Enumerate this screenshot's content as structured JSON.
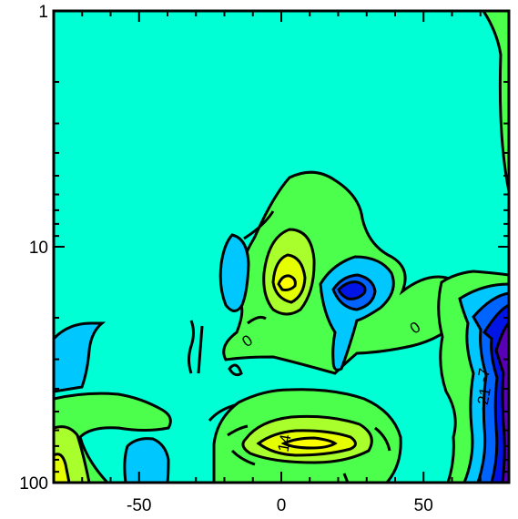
{
  "chart_data": {
    "type": "heatmap",
    "title": "",
    "xlabel": "",
    "ylabel": "",
    "xlim": [
      -80,
      80
    ],
    "ylim": [
      100,
      1
    ],
    "yscale": "log",
    "x_ticks": [
      {
        "value": -50,
        "label": "-50"
      },
      {
        "value": 0,
        "label": "0"
      },
      {
        "value": 50,
        "label": "50"
      }
    ],
    "y_ticks": [
      {
        "value": 1,
        "label": "1"
      },
      {
        "value": 10,
        "label": "10"
      },
      {
        "value": 100,
        "label": "100"
      }
    ],
    "grid": false,
    "contour_labels": [
      {
        "x": -12,
        "y": 25,
        "text": "0"
      },
      {
        "x": 47,
        "y": 22,
        "text": "0"
      },
      {
        "x": 1,
        "y": 68,
        "text": "14"
      },
      {
        "x": 71,
        "y": 35,
        "text": "-7"
      },
      {
        "x": 71,
        "y": 44,
        "text": "-21"
      }
    ],
    "colors": {
      "background": "#00ffd4",
      "green": "#4cff4c",
      "yellow_green": "#a9ff2c",
      "yellow": "#e6ff00",
      "light_blue": "#00c8ff",
      "blue": "#0064ff",
      "dark_blue": "#0014e6",
      "purple": "#5a00b4"
    }
  }
}
